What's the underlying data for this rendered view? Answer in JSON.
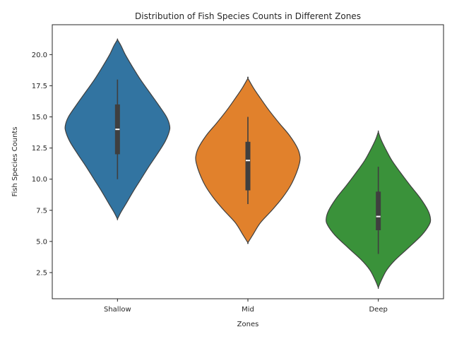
{
  "chart_data": {
    "type": "violin",
    "title": "Distribution of Fish Species Counts in Different Zones",
    "xlabel": "Zones",
    "ylabel": "Fish Species Counts",
    "ylim": [
      0.4,
      22.4
    ],
    "yticks": [
      2.5,
      5.0,
      7.5,
      10.0,
      12.5,
      15.0,
      17.5,
      20.0
    ],
    "ytick_labels": [
      "2.5",
      "5.0",
      "7.5",
      "10.0",
      "12.5",
      "15.0",
      "17.5",
      "20.0"
    ],
    "grid": false,
    "categories": [
      "Shallow",
      "Mid",
      "Deep"
    ],
    "series": [
      {
        "category": "Shallow",
        "color": "#3274a1",
        "kde_min": 6.8,
        "kde_max": 21.2,
        "density_profile": [
          [
            6.8,
            0.0
          ],
          [
            7.3,
            0.06
          ],
          [
            8.0,
            0.16
          ],
          [
            9.0,
            0.3
          ],
          [
            10.0,
            0.45
          ],
          [
            11.0,
            0.6
          ],
          [
            12.0,
            0.76
          ],
          [
            13.0,
            0.91
          ],
          [
            13.8,
            0.99
          ],
          [
            14.3,
            1.0
          ],
          [
            15.0,
            0.94
          ],
          [
            16.0,
            0.78
          ],
          [
            17.0,
            0.61
          ],
          [
            18.0,
            0.44
          ],
          [
            19.0,
            0.29
          ],
          [
            20.0,
            0.15
          ],
          [
            20.7,
            0.07
          ],
          [
            21.2,
            0.0
          ]
        ],
        "min": 10,
        "q1": 12,
        "median": 14,
        "q3": 16,
        "max": 18
      },
      {
        "category": "Mid",
        "color": "#e1812c",
        "kde_min": 4.9,
        "kde_max": 18.1,
        "density_profile": [
          [
            4.9,
            0.0
          ],
          [
            5.5,
            0.09
          ],
          [
            6.5,
            0.24
          ],
          [
            7.5,
            0.46
          ],
          [
            8.5,
            0.66
          ],
          [
            9.5,
            0.82
          ],
          [
            10.5,
            0.93
          ],
          [
            11.3,
            0.99
          ],
          [
            11.8,
            1.0
          ],
          [
            12.5,
            0.95
          ],
          [
            13.5,
            0.8
          ],
          [
            14.5,
            0.6
          ],
          [
            15.5,
            0.41
          ],
          [
            16.5,
            0.24
          ],
          [
            17.3,
            0.11
          ],
          [
            18.1,
            0.0
          ]
        ],
        "min": 8,
        "q1": 9.1,
        "median": 11.5,
        "q3": 13,
        "max": 15
      },
      {
        "category": "Deep",
        "color": "#3a923a",
        "kde_min": 1.3,
        "kde_max": 13.8,
        "density_profile": [
          [
            1.3,
            0.0
          ],
          [
            1.9,
            0.06
          ],
          [
            2.7,
            0.16
          ],
          [
            3.5,
            0.32
          ],
          [
            4.5,
            0.58
          ],
          [
            5.5,
            0.83
          ],
          [
            6.3,
            0.97
          ],
          [
            6.8,
            1.0
          ],
          [
            7.5,
            0.95
          ],
          [
            8.5,
            0.8
          ],
          [
            9.5,
            0.61
          ],
          [
            10.5,
            0.43
          ],
          [
            11.5,
            0.26
          ],
          [
            12.5,
            0.13
          ],
          [
            13.2,
            0.05
          ],
          [
            13.8,
            0.0
          ]
        ],
        "min": 4,
        "q1": 5.9,
        "median": 7,
        "q3": 9,
        "max": 11
      }
    ]
  }
}
